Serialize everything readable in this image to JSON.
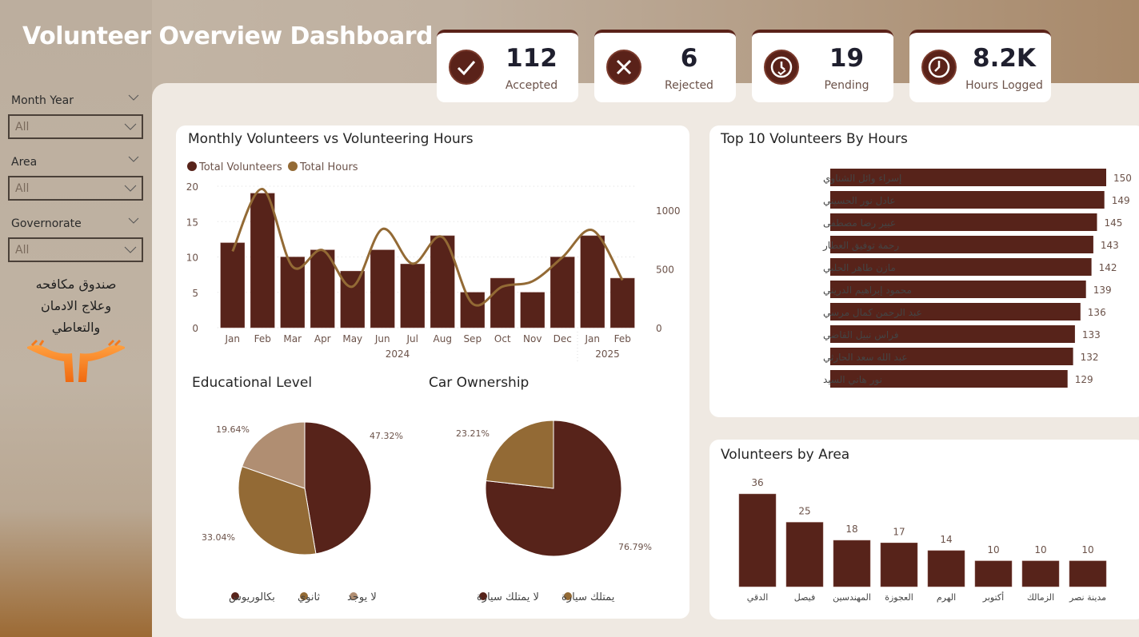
{
  "header": {
    "title": "Volunteer Overview Dashboard"
  },
  "kpis": [
    {
      "value": "112",
      "label": "Accepted",
      "icon": "check-icon"
    },
    {
      "value": "6",
      "label": "Rejected",
      "icon": "x-icon"
    },
    {
      "value": "19",
      "label": "Pending",
      "icon": "clock-check-icon"
    },
    {
      "value": "8.2K",
      "label": "Hours Logged",
      "icon": "clock-icon"
    }
  ],
  "filters": [
    {
      "label": "Month Year",
      "value": "All"
    },
    {
      "label": "Area",
      "value": "All"
    },
    {
      "label": "Governorate",
      "value": "All"
    }
  ],
  "org": {
    "line1": "صندوق مكافحه",
    "line2": "وعلاج الادمان",
    "line3": "والتعاطي"
  },
  "colors": {
    "dark": "#57231a",
    "mid": "#936a35",
    "light": "#b08e72"
  },
  "chart_data": [
    {
      "type": "bar+line",
      "title": "Monthly Volunteers vs Volunteering Hours",
      "categories": [
        "Jan",
        "Feb",
        "Mar",
        "Apr",
        "May",
        "Jun",
        "Jul",
        "Aug",
        "Sep",
        "Oct",
        "Nov",
        "Dec",
        "Jan",
        "Feb"
      ],
      "year_labels": [
        "2024",
        "2025"
      ],
      "series": [
        {
          "name": "Total Volunteers",
          "axis": "left",
          "values": [
            12,
            19,
            10,
            11,
            8,
            11,
            9,
            13,
            5,
            7,
            5,
            10,
            13,
            7
          ]
        },
        {
          "name": "Total Hours",
          "axis": "right",
          "values": [
            650,
            1180,
            520,
            660,
            350,
            840,
            545,
            770,
            205,
            350,
            395,
            600,
            830,
            405
          ]
        }
      ],
      "left_ticks": [
        "0",
        "5",
        "10",
        "15",
        "20"
      ],
      "ylim": [
        0,
        20
      ],
      "right_ticks": [
        "0",
        "500",
        "1000"
      ],
      "y2lim": [
        0,
        1200
      ],
      "legend": "top-left",
      "grid": true
    },
    {
      "type": "bar-horizontal",
      "title": "Top 10 Volunteers By Hours",
      "categories": [
        "إسراء وائل الشناوي",
        "عادل نور الحسيني",
        "عبير رضا مصطفى",
        "رحمة توفيق العطار",
        "مازن طاهر الحلبي",
        "محمود إبراهيم الدريني",
        "عبد الرحمن كمال مرسي",
        "فراس نبيل القاضي",
        "عبد الله سعد الحارثي",
        "نور هاني السيد"
      ],
      "values": [
        150,
        149,
        145,
        143,
        142,
        139,
        136,
        133,
        132,
        129
      ]
    },
    {
      "type": "pie",
      "title": "Educational Level",
      "categories": [
        "بكالوريوس",
        "ثانوي",
        "لا يوجد"
      ],
      "values": [
        47.32,
        33.04,
        19.64
      ],
      "labels": [
        "47.32%",
        "33.04%",
        "19.64%"
      ],
      "legend": "bottom"
    },
    {
      "type": "pie",
      "title": "Car Ownership",
      "categories": [
        "لا يمتلك سيارة",
        "يمتلك سيارة"
      ],
      "values": [
        76.79,
        23.21
      ],
      "labels": [
        "76.79%",
        "23.21%"
      ],
      "legend": "bottom"
    },
    {
      "type": "bar",
      "title": "Volunteers by Area",
      "categories": [
        "الدقي",
        "فيصل",
        "المهندسين",
        "العجوزة",
        "الهرم",
        "أكتوبر",
        "الزمالك",
        "مدينة نصر"
      ],
      "values": [
        36,
        25,
        18,
        17,
        14,
        10,
        10,
        10
      ]
    }
  ]
}
